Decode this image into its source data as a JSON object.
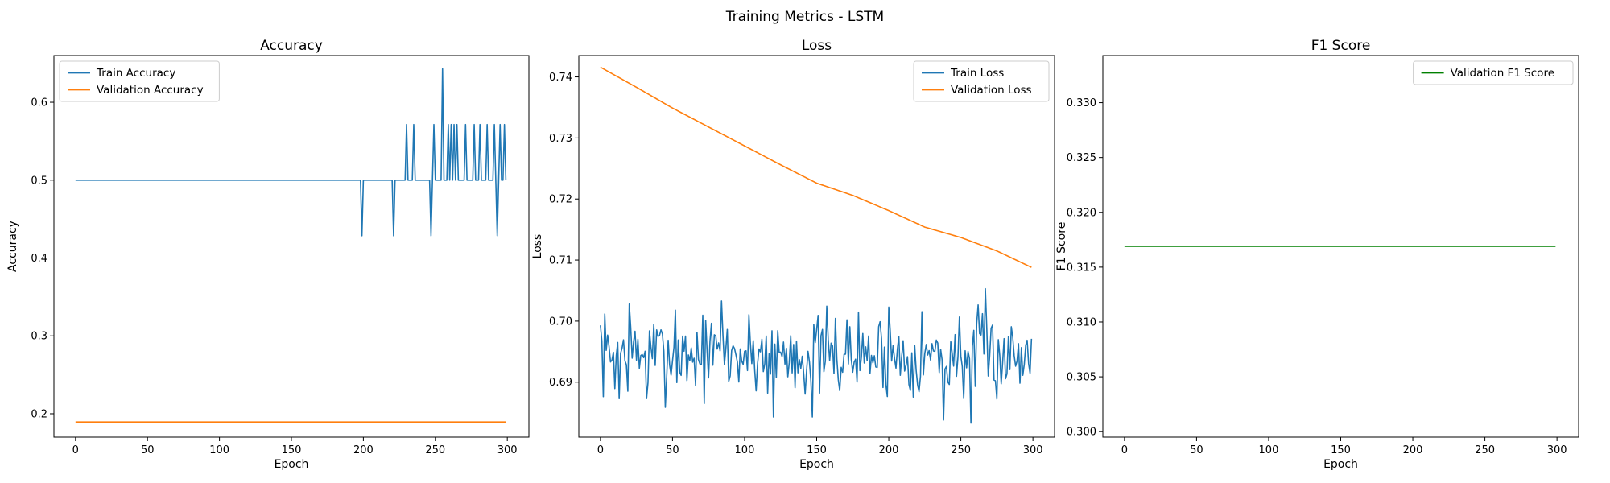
{
  "suptitle": "Training Metrics - LSTM",
  "colors": {
    "train": "#1f77b4",
    "validation": "#ff7f0e",
    "f1": "#008000"
  },
  "chart_data": [
    {
      "type": "line",
      "title": "Accuracy",
      "xlabel": "Epoch",
      "ylabel": "Accuracy",
      "xlim": [
        -15,
        315
      ],
      "ylim": [
        0.17,
        0.66
      ],
      "xticks": [
        0,
        50,
        100,
        150,
        200,
        250,
        300
      ],
      "yticks": [
        0.2,
        0.3,
        0.4,
        0.5,
        0.6
      ],
      "ytick_labels": [
        "0.2",
        "0.3",
        "0.4",
        "0.5",
        "0.6"
      ],
      "legend_loc": "upper-left",
      "series": [
        {
          "name": "Train Accuracy",
          "color": "#1f77b4",
          "base": 0.5,
          "length": 300,
          "deviations": [
            [
              199,
              0.4286
            ],
            [
              221,
              0.4286
            ],
            [
              230,
              0.5714
            ],
            [
              235,
              0.5714
            ],
            [
              247,
              0.4286
            ],
            [
              249,
              0.5714
            ],
            [
              255,
              0.6429
            ],
            [
              259,
              0.5714
            ],
            [
              261,
              0.5714
            ],
            [
              263,
              0.5714
            ],
            [
              265,
              0.5714
            ],
            [
              271,
              0.5714
            ],
            [
              277,
              0.5714
            ],
            [
              281,
              0.5714
            ],
            [
              286,
              0.5714
            ],
            [
              291,
              0.5714
            ],
            [
              293,
              0.4286
            ],
            [
              295,
              0.5714
            ],
            [
              298,
              0.5714
            ]
          ]
        },
        {
          "name": "Validation Accuracy",
          "color": "#ff7f0e",
          "base": 0.1894,
          "length": 300,
          "deviations": []
        }
      ]
    },
    {
      "type": "line",
      "title": "Loss",
      "xlabel": "Epoch",
      "ylabel": "Loss",
      "xlim": [
        -15,
        315
      ],
      "ylim": [
        0.681,
        0.7435
      ],
      "xticks": [
        0,
        50,
        100,
        150,
        200,
        250,
        300
      ],
      "yticks": [
        0.69,
        0.7,
        0.71,
        0.72,
        0.73,
        0.74
      ],
      "ytick_labels": [
        "0.69",
        "0.70",
        "0.71",
        "0.72",
        "0.73",
        "0.74"
      ],
      "legend_loc": "upper-right",
      "series": [
        {
          "name": "Train Loss",
          "color": "#1f77b4",
          "generator": "noise",
          "length": 300,
          "mean": 0.6945,
          "amplitude": 0.0045,
          "seed": 7,
          "extremes": [
            [
              0,
              0.6993
            ],
            [
              13,
              0.6873
            ],
            [
              20,
              0.7028
            ],
            [
              32,
              0.6873
            ],
            [
              52,
              0.7018
            ],
            [
              84,
              0.7033
            ],
            [
              120,
              0.6843
            ],
            [
              147,
              0.6843
            ],
            [
              200,
              0.7023
            ],
            [
              238,
              0.6838
            ],
            [
              257,
              0.6833
            ],
            [
              267,
              0.7053
            ],
            [
              299,
              0.6971
            ]
          ]
        },
        {
          "name": "Validation Loss",
          "color": "#ff7f0e",
          "generator": "anchors",
          "length": 300,
          "anchors": [
            [
              0,
              0.7416
            ],
            [
              25,
              0.7383
            ],
            [
              50,
              0.7349
            ],
            [
              75,
              0.7318
            ],
            [
              100,
              0.7287
            ],
            [
              125,
              0.7256
            ],
            [
              150,
              0.7226
            ],
            [
              175,
              0.7206
            ],
            [
              200,
              0.7181
            ],
            [
              225,
              0.7154
            ],
            [
              250,
              0.7137
            ],
            [
              275,
              0.7115
            ],
            [
              299,
              0.7088
            ]
          ]
        }
      ]
    },
    {
      "type": "line",
      "title": "F1 Score",
      "xlabel": "Epoch",
      "ylabel": "F1 Score",
      "xlim": [
        -15,
        315
      ],
      "ylim": [
        0.2995,
        0.3343
      ],
      "xticks": [
        0,
        50,
        100,
        150,
        200,
        250,
        300
      ],
      "yticks": [
        0.3,
        0.305,
        0.31,
        0.315,
        0.32,
        0.325,
        0.33
      ],
      "ytick_labels": [
        "0.300",
        "0.305",
        "0.310",
        "0.315",
        "0.320",
        "0.325",
        "0.330"
      ],
      "legend_loc": "upper-right",
      "series": [
        {
          "name": "Validation F1 Score",
          "color": "#008000",
          "base": 0.3169,
          "length": 300,
          "deviations": []
        }
      ]
    }
  ]
}
